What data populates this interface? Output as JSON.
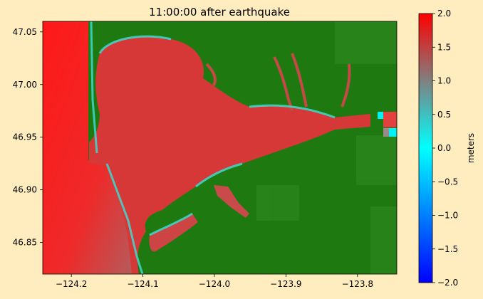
{
  "figure": {
    "background": "#ffedbf"
  },
  "chart_data": {
    "type": "heatmap",
    "title": "11:00:00 after earthquake",
    "xlabel": "",
    "ylabel": "",
    "xlim": [
      -124.24,
      -123.745
    ],
    "ylim": [
      46.82,
      47.06
    ],
    "xticks": [
      {
        "value": -124.2,
        "label": "−124.2"
      },
      {
        "value": -124.1,
        "label": "−124.1"
      },
      {
        "value": -124.0,
        "label": "−124.0"
      },
      {
        "value": -123.9,
        "label": "−123.9"
      },
      {
        "value": -123.8,
        "label": "−123.8"
      }
    ],
    "yticks": [
      {
        "value": 46.85,
        "label": "46.85"
      },
      {
        "value": 46.9,
        "label": "46.90"
      },
      {
        "value": 46.95,
        "label": "46.95"
      },
      {
        "value": 47.0,
        "label": "47.00"
      },
      {
        "value": 47.05,
        "label": "47.05"
      }
    ],
    "colorbar": {
      "label": "meters",
      "range": [
        -2.0,
        2.0
      ],
      "ticks": [
        {
          "value": 2.0,
          "label": "2.0"
        },
        {
          "value": 1.5,
          "label": "1.5"
        },
        {
          "value": 1.0,
          "label": "1.0"
        },
        {
          "value": 0.5,
          "label": "0.5"
        },
        {
          "value": 0.0,
          "label": "0.0"
        },
        {
          "value": -0.5,
          "label": "−0.5"
        },
        {
          "value": -1.0,
          "label": "−1.0"
        },
        {
          "value": -1.5,
          "label": "−1.5"
        },
        {
          "value": -2.0,
          "label": "−2.0"
        }
      ],
      "colors": [
        "#0000ff",
        "#00ffff",
        "#808080",
        "#ff0000"
      ]
    },
    "land_color": "#1e7a10",
    "water_color": "#d83a3a",
    "ocean_color": "#ff0000",
    "shoreline_color": "#40e0d0",
    "grid": false
  }
}
